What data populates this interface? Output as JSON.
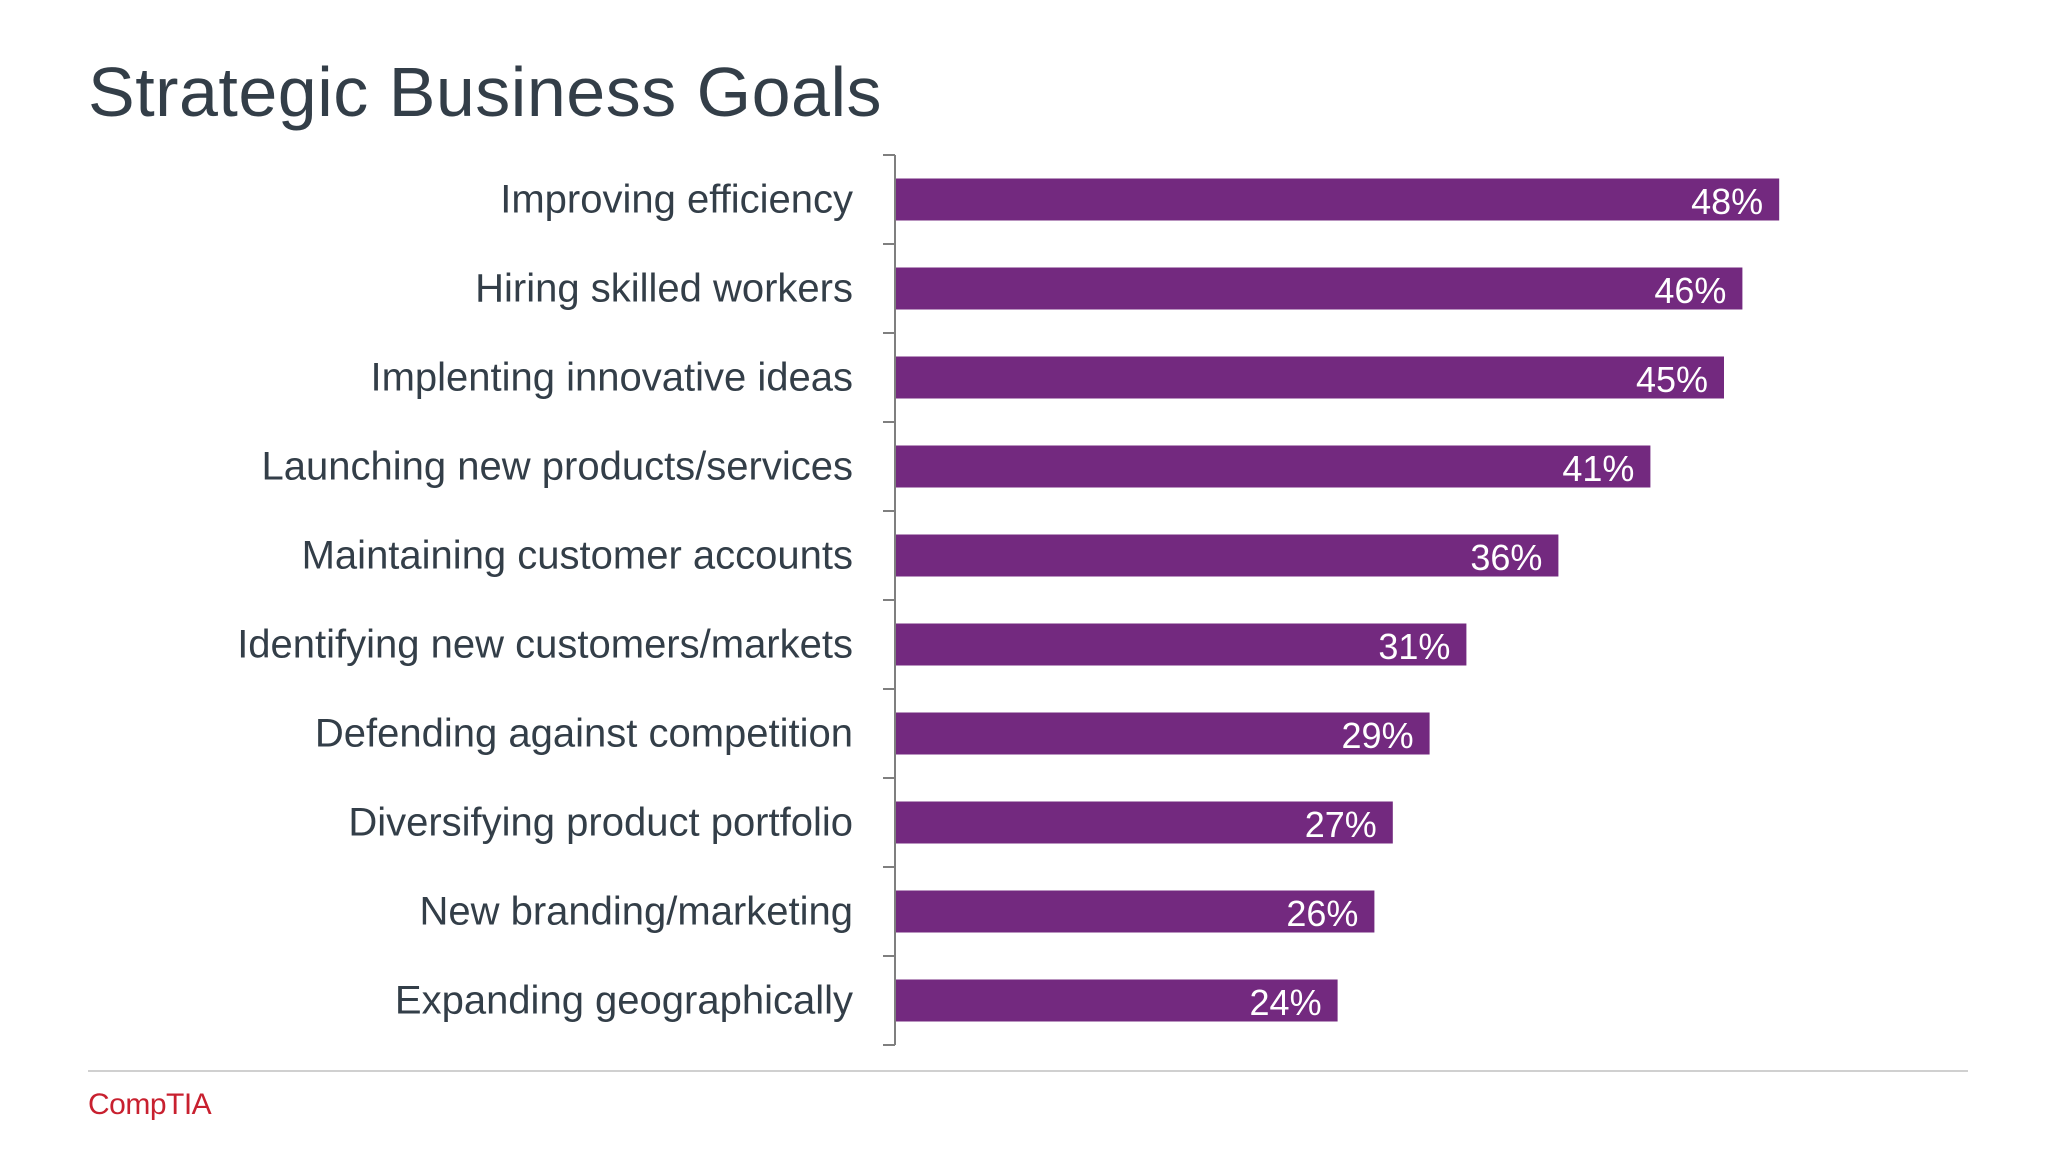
{
  "slide": {
    "title": "Strategic Business Goals",
    "logo_text": "CompTIA"
  },
  "colors": {
    "bar": "#73297f",
    "axis": "#7f7f7f",
    "title": "#333e48",
    "logo": "#c8202f"
  },
  "chart_data": {
    "type": "bar",
    "orientation": "horizontal",
    "title": "Strategic Business Goals",
    "categories": [
      "Improving efficiency",
      "Hiring skilled workers",
      "Implenting innovative ideas",
      "Launching new products/services",
      "Maintaining customer accounts",
      "Identifying new customers/markets",
      "Defending against competition",
      "Diversifying product portfolio",
      "New branding/marketing",
      "Expanding geographically"
    ],
    "values": [
      48,
      46,
      45,
      41,
      36,
      31,
      29,
      27,
      26,
      24
    ],
    "value_labels": [
      "48%",
      "46%",
      "45%",
      "41%",
      "36%",
      "31%",
      "29%",
      "27%",
      "26%",
      "24%"
    ],
    "unit": "%",
    "xlim": [
      0,
      100
    ],
    "grid": false,
    "legend": "none"
  }
}
